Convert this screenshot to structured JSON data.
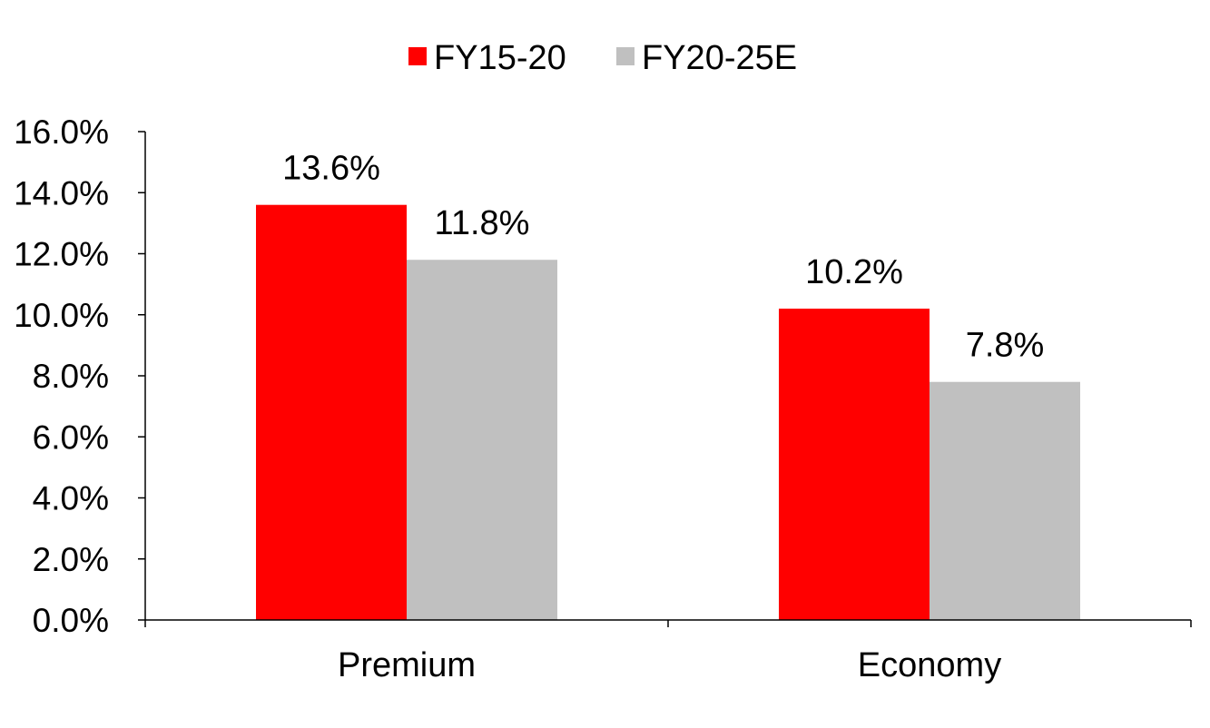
{
  "chart_data": {
    "type": "bar",
    "categories": [
      "Premium",
      "Economy"
    ],
    "series": [
      {
        "name": "FY15-20",
        "values": [
          13.6,
          10.2
        ],
        "color": "#ff0000"
      },
      {
        "name": "FY20-25E",
        "values": [
          11.8,
          7.8
        ],
        "color": "#c0c0c0"
      }
    ],
    "data_labels": [
      [
        "13.6%",
        "10.2%"
      ],
      [
        "11.8%",
        "7.8%"
      ]
    ],
    "ylim": [
      0,
      16
    ],
    "yticks": [
      0,
      2,
      4,
      6,
      8,
      10,
      12,
      14,
      16
    ],
    "ytick_labels": [
      "0.0%",
      "2.0%",
      "4.0%",
      "6.0%",
      "8.0%",
      "10.0%",
      "12.0%",
      "14.0%",
      "16.0%"
    ],
    "title": "",
    "xlabel": "",
    "ylabel": "",
    "grid": false,
    "legend_position": "top"
  }
}
